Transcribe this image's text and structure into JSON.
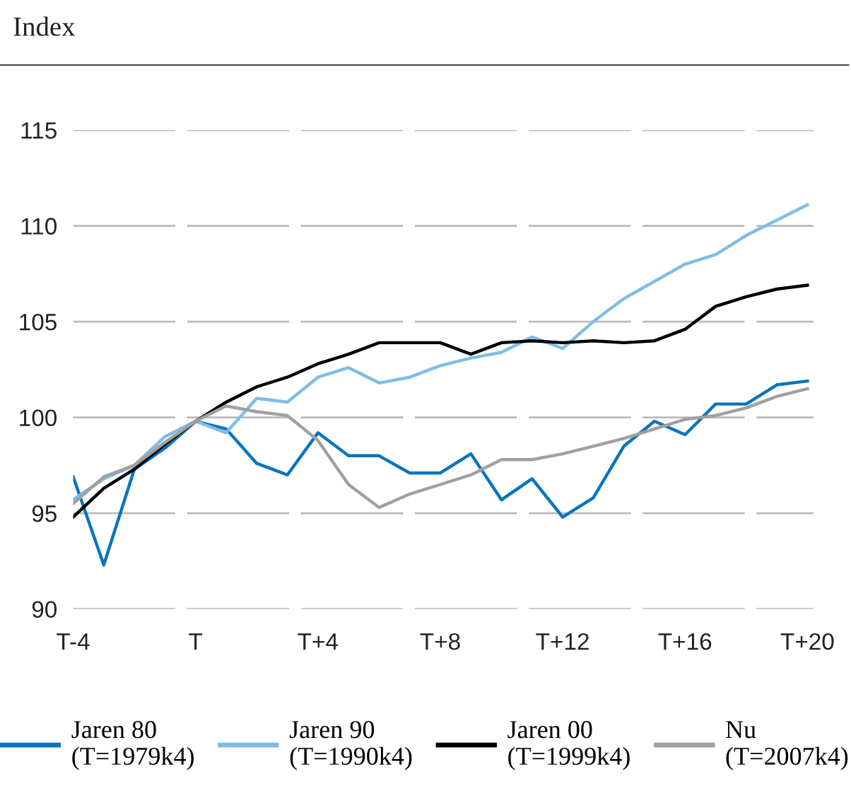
{
  "chart_data": {
    "type": "line",
    "ylabel": "Index",
    "categories": [
      "T-4",
      null,
      null,
      null,
      "T",
      null,
      null,
      null,
      "T+4",
      null,
      null,
      null,
      "T+8",
      null,
      null,
      null,
      "T+12",
      null,
      null,
      null,
      "T+16",
      null,
      null,
      null,
      "T+20"
    ],
    "series": [
      {
        "name": "Jaren 80\n(T=1979k4)",
        "color": "#0a74bd",
        "values": [
          96.9,
          92.3,
          97.3,
          98.4,
          99.8,
          99.4,
          97.6,
          97.0,
          99.2,
          98.0,
          98.0,
          97.1,
          97.1,
          98.1,
          95.7,
          96.8,
          94.8,
          95.8,
          98.5,
          99.8,
          99.1,
          100.7,
          100.7,
          101.7,
          101.9
        ]
      },
      {
        "name": "Jaren 90\n(T=1990k4)",
        "color": "#7fbde6",
        "values": [
          95.7,
          96.8,
          97.5,
          99.0,
          99.8,
          99.2,
          101.0,
          100.8,
          102.1,
          102.6,
          101.8,
          102.1,
          102.7,
          103.1,
          103.4,
          104.2,
          103.6,
          105.0,
          106.2,
          107.1,
          108.0,
          108.5,
          109.5,
          110.3,
          111.1
        ]
      },
      {
        "name": "Jaren 00\n(T=1999k4)",
        "color": "#000000",
        "values": [
          94.8,
          96.3,
          97.3,
          98.6,
          99.8,
          100.8,
          101.6,
          102.1,
          102.8,
          103.3,
          103.9,
          103.9,
          103.9,
          103.3,
          103.9,
          104.0,
          103.9,
          104.0,
          103.9,
          104.0,
          104.6,
          105.8,
          106.3,
          106.7,
          106.9
        ]
      },
      {
        "name": "Nu\n(T=2007k4)",
        "color": "#a0a0a0",
        "values": [
          95.5,
          96.9,
          97.5,
          98.7,
          99.8,
          100.6,
          100.3,
          100.1,
          98.8,
          96.5,
          95.3,
          96.0,
          96.5,
          97.0,
          97.8,
          97.8,
          98.1,
          98.5,
          98.9,
          99.4,
          99.9,
          100.1,
          100.5,
          101.1,
          101.5
        ]
      }
    ],
    "ylim": [
      90,
      115
    ],
    "yticks": [
      90,
      95,
      100,
      105,
      110,
      115
    ],
    "grid": "y",
    "legend": "bottom",
    "line_style": "solid"
  }
}
